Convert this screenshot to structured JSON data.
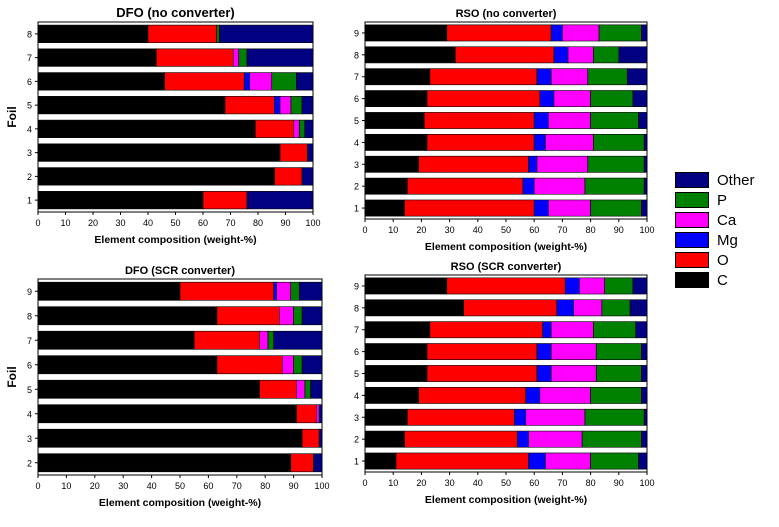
{
  "chart_data": [
    {
      "type": "bar",
      "orientation": "horizontal",
      "stacked": true,
      "title": "DFO (no converter)",
      "xlabel": "Element composition (weight-%)",
      "ylabel": "Foil",
      "xlim": [
        0,
        100
      ],
      "xticks": [
        "0",
        "10",
        "20",
        "30",
        "40",
        "50",
        "60",
        "70",
        "80",
        "90",
        "100"
      ],
      "categories": [
        "1",
        "2",
        "3",
        "4",
        "5",
        "6",
        "7",
        "8"
      ],
      "series": [
        {
          "name": "C",
          "values": [
            60,
            86,
            88,
            79,
            68,
            46,
            43,
            40
          ]
        },
        {
          "name": "O",
          "values": [
            16,
            10,
            10,
            14,
            18,
            29,
            28,
            25
          ]
        },
        {
          "name": "Mg",
          "values": [
            0,
            0,
            0,
            0,
            2,
            2,
            0,
            0
          ]
        },
        {
          "name": "Ca",
          "values": [
            0,
            0,
            0,
            2,
            4,
            8,
            2,
            0
          ]
        },
        {
          "name": "P",
          "values": [
            0,
            0,
            0,
            2,
            4,
            9,
            3,
            1
          ]
        },
        {
          "name": "Other",
          "values": [
            24,
            4,
            2,
            3,
            4,
            6,
            24,
            34
          ]
        }
      ]
    },
    {
      "type": "bar",
      "orientation": "horizontal",
      "stacked": true,
      "title": "RSO (no converter)",
      "xlabel": "Element composition (weight-%)",
      "ylabel": "",
      "xlim": [
        0,
        100
      ],
      "xticks": [
        "0",
        "10",
        "20",
        "30",
        "40",
        "50",
        "60",
        "70",
        "80",
        "90",
        "100"
      ],
      "categories": [
        "1",
        "2",
        "3",
        "4",
        "5",
        "6",
        "7",
        "8",
        "9"
      ],
      "series": [
        {
          "name": "C",
          "values": [
            14,
            15,
            19,
            22,
            21,
            22,
            23,
            32,
            29
          ]
        },
        {
          "name": "O",
          "values": [
            46,
            41,
            39,
            38,
            39,
            40,
            38,
            35,
            37
          ]
        },
        {
          "name": "Mg",
          "values": [
            5,
            4,
            3,
            4,
            5,
            5,
            5,
            5,
            4
          ]
        },
        {
          "name": "Ca",
          "values": [
            15,
            18,
            18,
            17,
            15,
            13,
            13,
            9,
            13
          ]
        },
        {
          "name": "P",
          "values": [
            18,
            21,
            20,
            18,
            17,
            15,
            14,
            9,
            15
          ]
        },
        {
          "name": "Other",
          "values": [
            2,
            1,
            1,
            1,
            3,
            5,
            7,
            10,
            2
          ]
        }
      ]
    },
    {
      "type": "bar",
      "orientation": "horizontal",
      "stacked": true,
      "title": "DFO (SCR converter)",
      "xlabel": "Element composition (weight-%)",
      "ylabel": "Foil",
      "xlim": [
        0,
        100
      ],
      "xticks": [
        "0",
        "10",
        "20",
        "30",
        "40",
        "50",
        "60",
        "70",
        "80",
        "90",
        "100"
      ],
      "categories": [
        "2",
        "3",
        "4",
        "5",
        "6",
        "7",
        "8",
        "9"
      ],
      "series": [
        {
          "name": "C",
          "values": [
            89,
            93,
            91,
            78,
            63,
            55,
            63,
            50
          ]
        },
        {
          "name": "O",
          "values": [
            8,
            6,
            7,
            13,
            23,
            23,
            22,
            33
          ]
        },
        {
          "name": "Mg",
          "values": [
            0,
            0,
            0,
            0,
            0,
            0,
            0,
            1
          ]
        },
        {
          "name": "Ca",
          "values": [
            0,
            0,
            1,
            3,
            4,
            3,
            5,
            5
          ]
        },
        {
          "name": "P",
          "values": [
            0,
            0,
            0,
            2,
            3,
            2,
            3,
            3
          ]
        },
        {
          "name": "Other",
          "values": [
            3,
            1,
            1,
            4,
            7,
            17,
            7,
            8
          ]
        }
      ]
    },
    {
      "type": "bar",
      "orientation": "horizontal",
      "stacked": true,
      "title": "RSO (SCR converter)",
      "xlabel": "Element composition (weight-%)",
      "ylabel": "",
      "xlim": [
        0,
        100
      ],
      "xticks": [
        "0",
        "10",
        "20",
        "30",
        "40",
        "50",
        "60",
        "70",
        "80",
        "90",
        "100"
      ],
      "categories": [
        "1",
        "2",
        "3",
        "4",
        "5",
        "6",
        "7",
        "8",
        "9"
      ],
      "series": [
        {
          "name": "C",
          "values": [
            11,
            14,
            15,
            19,
            22,
            22,
            23,
            35,
            29
          ]
        },
        {
          "name": "O",
          "values": [
            47,
            40,
            38,
            38,
            39,
            39,
            40,
            33,
            42
          ]
        },
        {
          "name": "Mg",
          "values": [
            6,
            4,
            4,
            5,
            5,
            5,
            3,
            6,
            5
          ]
        },
        {
          "name": "Ca",
          "values": [
            16,
            19,
            21,
            18,
            16,
            16,
            15,
            10,
            9
          ]
        },
        {
          "name": "P",
          "values": [
            17,
            21,
            21,
            18,
            16,
            16,
            15,
            10,
            10
          ]
        },
        {
          "name": "Other",
          "values": [
            3,
            2,
            1,
            2,
            2,
            2,
            4,
            6,
            5
          ]
        }
      ]
    }
  ],
  "legend": {
    "entries": [
      {
        "name": "Other",
        "color": "#000080"
      },
      {
        "name": "P",
        "color": "#008000"
      },
      {
        "name": "Ca",
        "color": "#ff00ff"
      },
      {
        "name": "Mg",
        "color": "#0000ff"
      },
      {
        "name": "O",
        "color": "#ff0000"
      },
      {
        "name": "C",
        "color": "#000000"
      }
    ]
  },
  "series_colors": {
    "C": "#000000",
    "O": "#ff0000",
    "Mg": "#0000ff",
    "Ca": "#ff00ff",
    "P": "#008000",
    "Other": "#000080"
  }
}
